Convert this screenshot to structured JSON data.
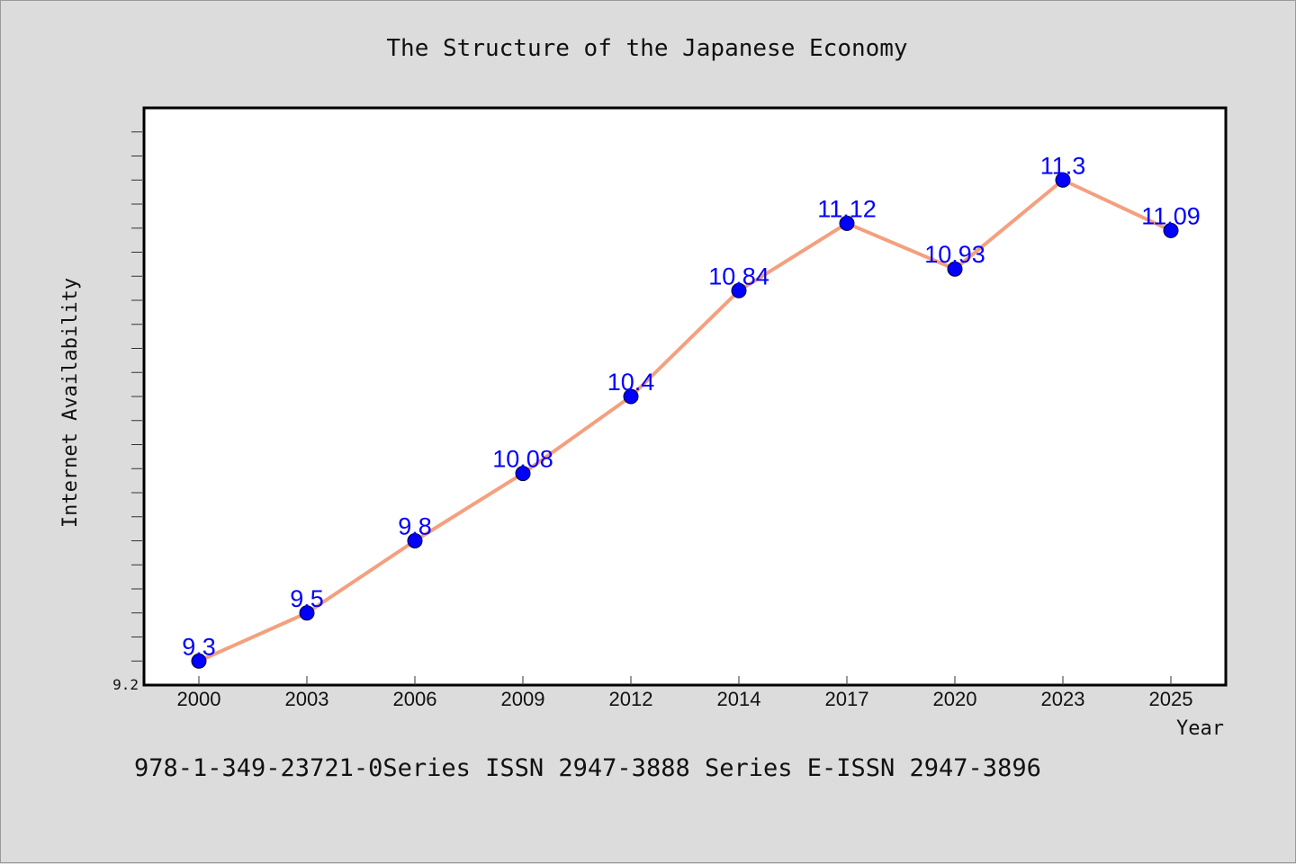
{
  "chart_data": {
    "type": "line",
    "title": "The Structure of the Japanese Economy",
    "xlabel": "Year",
    "ylabel": "Internet Availability",
    "categories": [
      "2000",
      "2003",
      "2006",
      "2009",
      "2012",
      "2014",
      "2017",
      "2020",
      "2023",
      "2025"
    ],
    "series": [
      {
        "values": [
          9.3,
          9.5,
          9.8,
          10.08,
          10.4,
          10.84,
          11.12,
          10.93,
          11.3,
          11.09
        ],
        "labels": [
          "9.3",
          "9.5",
          "9.8",
          "10.08",
          "10.4",
          "10.84",
          "11.12",
          "10.93",
          "11.3",
          "11.09"
        ],
        "line_color": "#f4a07e",
        "marker_color": "#0000ff"
      }
    ],
    "ylim": [
      9.2,
      11.6
    ],
    "ytick_labels": [
      "9.2"
    ],
    "grid": false,
    "legend": "none"
  },
  "footer": {
    "text": "978-1-349-23721-0Series ISSN 2947-3888 Series E-ISSN 2947-3896"
  }
}
